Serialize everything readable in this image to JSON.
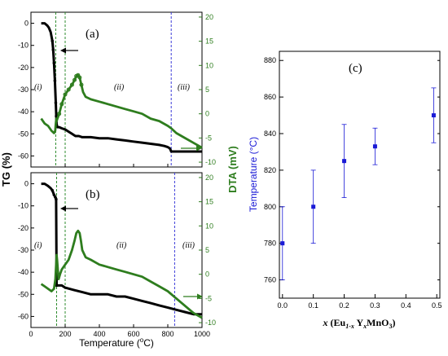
{
  "colors": {
    "tg": "#000000",
    "dta": "#2e7d1e",
    "temp": "#1a1ad6",
    "bound_green": "#2e8b2e",
    "bound_blue": "#3a3ad8"
  },
  "chart_data": [
    {
      "type": "line",
      "panel_label": "(a)",
      "xlim": [
        0,
        1000
      ],
      "ylim_left": [
        -65,
        5
      ],
      "ylim_right": [
        -11,
        21
      ],
      "left_ticks": [
        "0",
        "-10",
        "-20",
        "-30",
        "-40",
        "-50",
        "-60"
      ],
      "right_ticks": [
        "20",
        "15",
        "10",
        "5",
        "0",
        "-5",
        "-10"
      ],
      "regions": [
        "(i)",
        "(ii)",
        "(iii)"
      ],
      "boundaries": {
        "green": [
          145,
          200
        ],
        "blue": [
          820
        ]
      },
      "series": [
        {
          "axis": "left",
          "x": [
            60,
            80,
            95,
            105,
            115,
            125,
            130,
            135,
            140,
            145,
            148,
            150,
            155,
            165,
            180,
            200,
            220,
            240,
            260,
            280,
            300,
            350,
            400,
            450,
            500,
            550,
            600,
            650,
            700,
            750,
            780,
            800,
            810,
            815,
            820,
            830,
            850,
            900,
            950,
            1000
          ],
          "y": [
            0,
            0,
            -1,
            -2,
            -4,
            -8,
            -12,
            -18,
            -26,
            -36,
            -42,
            -46,
            -47,
            -47,
            -47.5,
            -48,
            -49,
            -50,
            -51,
            -51,
            -51.5,
            -51.5,
            -52,
            -52,
            -52.5,
            -53,
            -53.5,
            -54,
            -54.5,
            -55,
            -55.5,
            -56,
            -56.5,
            -57,
            -58,
            -58,
            -58,
            -58,
            -58,
            -58
          ]
        },
        {
          "axis": "right",
          "x": [
            60,
            80,
            100,
            120,
            135,
            142,
            145,
            148,
            150,
            155,
            165,
            180,
            200,
            220,
            240,
            255,
            265,
            275,
            285,
            295,
            305,
            320,
            350,
            400,
            450,
            500,
            550,
            600,
            650,
            700,
            750,
            800,
            820,
            850,
            900,
            950,
            1000
          ],
          "y": [
            -1,
            -2,
            -2.5,
            -3.5,
            -4,
            -3.5,
            -2,
            -1,
            -1.5,
            -1,
            0,
            2,
            4,
            5,
            6,
            7,
            7.8,
            8,
            7.5,
            6,
            4.5,
            3.5,
            3,
            2.5,
            2,
            1.5,
            1,
            0.5,
            0,
            -1,
            -1.5,
            -2.5,
            -3,
            -4,
            -5,
            -6,
            -7
          ]
        }
      ]
    },
    {
      "type": "line",
      "panel_label": "(b)",
      "xlim": [
        0,
        1000
      ],
      "ylim_left": [
        -65,
        5
      ],
      "ylim_right": [
        -11,
        21
      ],
      "left_ticks": [
        "0",
        "-10",
        "-20",
        "-30",
        "-40",
        "-50",
        "-60"
      ],
      "right_ticks": [
        "20",
        "15",
        "10",
        "5",
        "0",
        "-5",
        "-10"
      ],
      "regions": [
        "(i)",
        "(ii)",
        "(iii)"
      ],
      "boundaries": {
        "green": [
          150,
          200
        ],
        "blue": [
          840
        ]
      },
      "series": [
        {
          "axis": "left",
          "x": [
            60,
            80,
            100,
            115,
            125,
            135,
            142,
            147,
            150,
            160,
            180,
            200,
            250,
            300,
            350,
            400,
            450,
            500,
            550,
            600,
            650,
            700,
            750,
            800,
            850,
            900,
            950,
            1000
          ],
          "y": [
            0,
            0,
            -1,
            -2,
            -3,
            -5,
            -6,
            -7,
            -46,
            -46,
            -46,
            -47,
            -48,
            -49,
            -50,
            -50,
            -50,
            -51,
            -51,
            -52,
            -53,
            -54,
            -55,
            -56,
            -57,
            -58,
            -59,
            -59
          ]
        },
        {
          "axis": "right",
          "x": [
            60,
            80,
            100,
            120,
            135,
            143,
            147,
            150,
            153,
            157,
            162,
            170,
            180,
            200,
            220,
            240,
            255,
            265,
            275,
            285,
            292,
            300,
            320,
            350,
            400,
            450,
            500,
            550,
            600,
            650,
            700,
            750,
            800,
            850,
            900,
            950,
            1000
          ],
          "y": [
            -2,
            -2.5,
            -3,
            -3.5,
            -3,
            -1,
            2,
            4,
            3,
            1,
            -1,
            0,
            1,
            2,
            3,
            5,
            7,
            8.5,
            9,
            8.5,
            7,
            5,
            3.5,
            3,
            2,
            1.5,
            1,
            0.5,
            0,
            -0.5,
            -1.5,
            -2.5,
            -3.5,
            -5,
            -6.5,
            -8,
            -9
          ]
        }
      ]
    },
    {
      "type": "scatter",
      "panel_label": "(c)",
      "ylabel": "Temperature (°C)",
      "xlim": [
        -0.01,
        0.51
      ],
      "ylim": [
        750,
        885
      ],
      "x_ticks": [
        "0.0",
        "0.1",
        "0.2",
        "0.3",
        "0.4",
        "0.5"
      ],
      "y_ticks": [
        "760",
        "780",
        "800",
        "820",
        "840",
        "860",
        "880"
      ],
      "points": [
        {
          "x": 0.0,
          "y": 780,
          "err": 20
        },
        {
          "x": 0.1,
          "y": 800,
          "err": 20
        },
        {
          "x": 0.2,
          "y": 825,
          "err": 20
        },
        {
          "x": 0.3,
          "y": 833,
          "err": 10
        },
        {
          "x": 0.49,
          "y": 850,
          "err": 15
        }
      ]
    }
  ],
  "labels": {
    "tg_axis": "TG (%)",
    "dta_axis": "DTA (mV)",
    "temp_axis_prefix": "Temperature (",
    "temp_axis_o": "o",
    "temp_axis_suffix": "C)",
    "x_ticks": [
      "0",
      "200",
      "400",
      "600",
      "800",
      "1000"
    ],
    "c_xlabel": {
      "x": "x",
      "open": " (Eu",
      "sub1": "1-x",
      "mid": " Y",
      "sub2": "x",
      "end": "MnO",
      "sub3": "3",
      "close": ")"
    }
  }
}
